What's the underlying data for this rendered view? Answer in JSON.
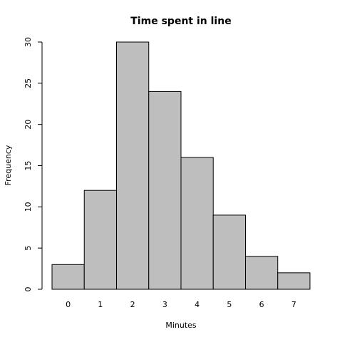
{
  "chart_data": {
    "type": "bar",
    "title": "Time spent in line",
    "x_label": "Minutes",
    "y_label": "Frequency",
    "categories": [
      "0",
      "1",
      "2",
      "3",
      "4",
      "5",
      "6",
      "7"
    ],
    "values": [
      3,
      12,
      30,
      24,
      16,
      9,
      4,
      2
    ],
    "color": "#bebebe",
    "ylim": [
      0,
      30
    ],
    "yticks": [
      0,
      5,
      10,
      15,
      20,
      25,
      30
    ]
  }
}
